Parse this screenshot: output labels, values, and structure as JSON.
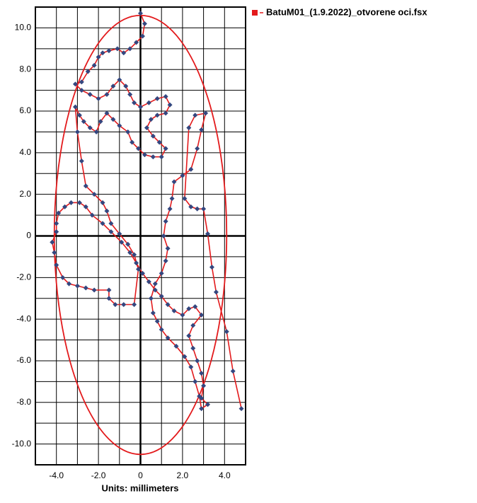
{
  "chart_data": {
    "type": "line",
    "x_label": "Units: millimeters",
    "xlim": [
      -5,
      5
    ],
    "ylim": [
      -11,
      11
    ],
    "xticks": [
      {
        "value": -4,
        "label": "-4.0"
      },
      {
        "value": -2,
        "label": "-2.0"
      },
      0,
      {
        "value": 2,
        "label": "2.0"
      },
      {
        "value": 4,
        "label": "4.0"
      }
    ],
    "yticks": [
      {
        "value": 10,
        "label": "10.0"
      },
      {
        "value": 8,
        "label": "8.0"
      },
      {
        "value": 6,
        "label": "6.0"
      },
      {
        "value": 4,
        "label": "4.0"
      },
      {
        "value": 2,
        "label": "2.0"
      },
      0,
      {
        "value": -2,
        "label": "-2.0"
      },
      {
        "value": -4,
        "label": "-4.0"
      },
      {
        "value": -6,
        "label": "-6.0"
      },
      {
        "value": -8,
        "label": "-8.0"
      },
      {
        "value": -10,
        "label": "-10.0"
      }
    ],
    "x_minor_ticks": [
      -3,
      -1,
      1,
      3
    ],
    "y_minor_ticks": [
      9,
      7,
      5,
      3,
      1,
      -1,
      -3,
      -5,
      -7,
      -9
    ],
    "grid": true,
    "legend": "top-right",
    "ellipse": {
      "cx": 0,
      "cy": 0.05,
      "rx": 4.1,
      "ry": 10.55,
      "color": "#e31a1c"
    },
    "series": [
      {
        "name": "BatuM01_(1.9.2022)_otvorene oci.fsx",
        "color": "#e31a1c",
        "marker_color": "#34477f",
        "x": [
          0,
          0.2,
          0.1,
          -0.2,
          -0.5,
          -0.8,
          -1.1,
          -1.5,
          -1.8,
          -2.0,
          -2.2,
          -2.5,
          -2.8,
          -3.1,
          -2.8,
          -2.4,
          -2.0,
          -1.6,
          -1.3,
          -1.0,
          -0.7,
          -0.5,
          -0.3,
          0,
          0.4,
          0.8,
          1.2,
          1.4,
          1.2,
          0.8,
          0.5,
          0.3,
          0.6,
          0.9,
          1.2,
          1.0,
          0.6,
          0.2,
          -0.1,
          -0.4,
          -0.6,
          -1.0,
          -1.3,
          -1.6,
          -1.9,
          -2.1,
          -2.4,
          -2.7,
          -2.9,
          -3.1,
          -3.0,
          -2.8,
          -2.6,
          -2.2,
          -1.8,
          -1.6,
          -1.4,
          -1.0,
          -0.6,
          -0.3,
          -0.1,
          -0.3,
          -0.8,
          -1.2,
          -1.5,
          -1.5,
          -2.2,
          -2.6,
          -3.0,
          -3.4,
          -3.7,
          -4.0,
          -4.1,
          -4.2,
          -4.0,
          -4.0,
          -3.9,
          -3.6,
          -3.3,
          -2.9,
          -2.6,
          -2.3,
          -1.8,
          -1.4,
          -0.9,
          -0.5,
          -0.2,
          0.1,
          0.4,
          0.7,
          1.0,
          1.3,
          1.6,
          2.0,
          2.3,
          2.6,
          2.9,
          2.5,
          2.3,
          2.5,
          2.7,
          2.9,
          3.0,
          2.9,
          3.2,
          2.9,
          2.8,
          2.6,
          2.4,
          2.1,
          1.7,
          1.3,
          1.0,
          0.8,
          0.6,
          0.5,
          0.7,
          1.0,
          1.2,
          1.3,
          1.1,
          1.2,
          1.4,
          1.5,
          1.6,
          2.0,
          2.4,
          2.7,
          2.9,
          3.1,
          2.6,
          2.3,
          2.1,
          2.4,
          2.7,
          3.0,
          3.2,
          3.4,
          3.6,
          4.1,
          4.4,
          4.8
        ],
        "values": [
          10.7,
          10.2,
          9.6,
          9.3,
          9.0,
          8.8,
          9.0,
          8.9,
          8.8,
          8.6,
          8.2,
          7.9,
          7.4,
          7.3,
          7.0,
          6.8,
          6.6,
          6.8,
          7.2,
          7.5,
          7.2,
          6.8,
          6.4,
          6.2,
          6.4,
          6.6,
          6.7,
          6.3,
          5.9,
          5.8,
          5.6,
          5.2,
          4.8,
          4.5,
          4.2,
          3.8,
          3.8,
          3.9,
          4.2,
          4.5,
          5.0,
          5.3,
          5.6,
          5.9,
          5.5,
          5.0,
          5.2,
          5.5,
          5.8,
          6.2,
          5.0,
          3.6,
          2.4,
          2.0,
          1.6,
          1.2,
          0.6,
          0.1,
          -0.4,
          -0.9,
          -1.6,
          -3.3,
          -3.3,
          -3.3,
          -3.0,
          -2.6,
          -2.6,
          -2.5,
          -2.4,
          -2.3,
          -2.0,
          -1.4,
          -0.8,
          -0.3,
          0.2,
          0.6,
          1.1,
          1.4,
          1.6,
          1.6,
          1.4,
          1.0,
          0.6,
          0.2,
          -0.3,
          -0.8,
          -1.3,
          -1.8,
          -2.2,
          -2.6,
          -2.9,
          -3.3,
          -3.6,
          -3.8,
          -3.5,
          -3.4,
          -3.8,
          -4.3,
          -4.8,
          -5.4,
          -6.0,
          -6.6,
          -7.2,
          -7.8,
          -8.1,
          -8.3,
          -7.7,
          -7.0,
          -6.3,
          -5.8,
          -5.3,
          -4.9,
          -4.5,
          -4.1,
          -3.7,
          -3.0,
          -2.3,
          -1.8,
          -1.2,
          -0.6,
          0,
          0.7,
          1.3,
          1.8,
          2.6,
          2.9,
          3.2,
          4.2,
          5.1,
          5.9,
          5.8,
          5.2,
          1.8,
          1.4,
          1.3,
          1.3,
          0.1,
          -1.5,
          -2.7,
          -4.6,
          -6.5,
          -8.3
        ]
      }
    ]
  }
}
